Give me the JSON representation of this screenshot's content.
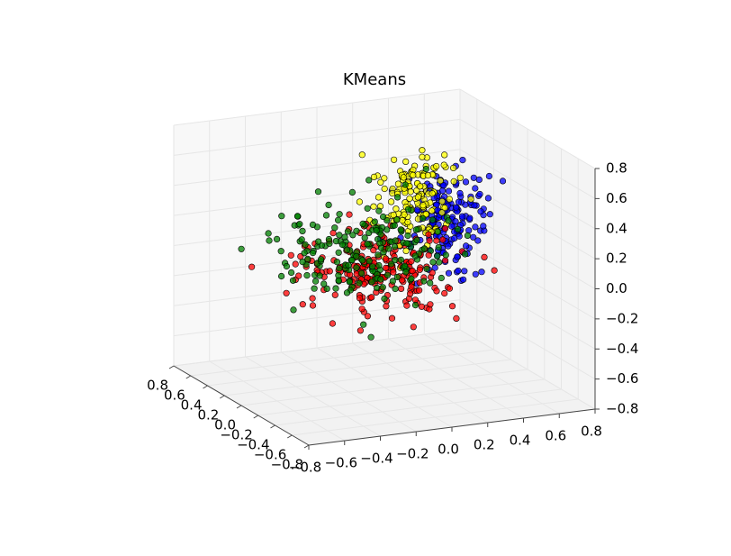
{
  "chart_data": {
    "type": "scatter",
    "title": "KMeans",
    "projection": "3d",
    "grid": true,
    "x_ticks": [
      "−0.8",
      "−0.6",
      "−0.4",
      "−0.2",
      "0.0",
      "0.2",
      "0.4",
      "0.6",
      "0.8"
    ],
    "y_ticks": [
      "−0.8",
      "−0.6",
      "−0.4",
      "−0.2",
      "0.0",
      "0.2",
      "0.4",
      "0.6",
      "0.8"
    ],
    "z_ticks": [
      "−0.8",
      "−0.6",
      "−0.4",
      "−0.2",
      "0.0",
      "0.2",
      "0.4",
      "0.6",
      "0.8"
    ],
    "xlim": [
      -0.8,
      0.8
    ],
    "ylim": [
      -0.8,
      0.8
    ],
    "zlim": [
      -0.8,
      0.8
    ],
    "clusters": [
      {
        "color": "#008000",
        "n": 200,
        "center": [
          -0.3,
          -0.45,
          0.3
        ],
        "spread": [
          0.25,
          0.2,
          0.15
        ]
      },
      {
        "color": "#ff0000",
        "n": 220,
        "center": [
          -0.1,
          -0.05,
          0.0
        ],
        "spread": [
          0.2,
          0.2,
          0.12
        ]
      },
      {
        "color": "#ffff00",
        "n": 150,
        "center": [
          0.3,
          0.3,
          0.3
        ],
        "spread": [
          0.1,
          0.12,
          0.15
        ]
      },
      {
        "color": "#0000ff",
        "n": 170,
        "center": [
          0.55,
          0.4,
          0.1
        ],
        "spread": [
          0.1,
          0.1,
          0.15
        ]
      }
    ]
  }
}
